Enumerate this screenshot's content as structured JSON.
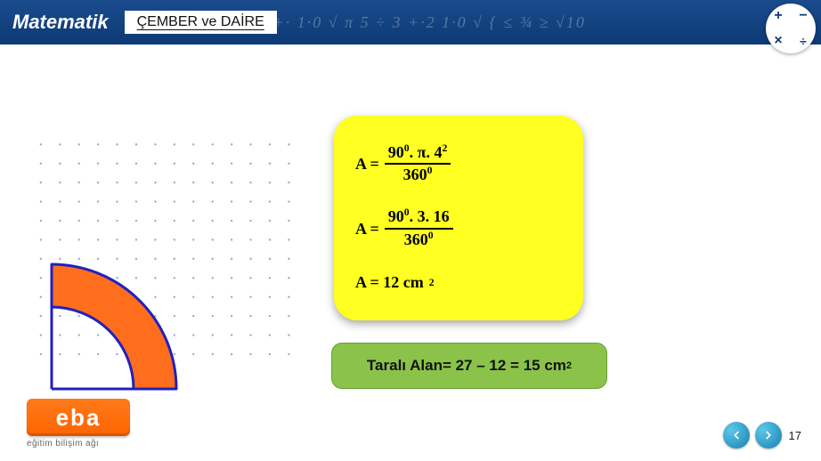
{
  "header": {
    "brand": "Matematik",
    "subtitle": "ÇEMBER ve DAİRE",
    "decor": "π 5 ÷ 3 +·2 1 +· 1·0 √   π 5 ÷ 3 +·2 1·0 √ { ≤ ¾ ≥ √10",
    "badge": [
      "+",
      "−",
      "×",
      "÷"
    ]
  },
  "formulas": {
    "line1_left": "A =",
    "line1_num_a": "90",
    "line1_num_a_sup": "0",
    "line1_num_mid": ". π. 4",
    "line1_num_b_sup": "2",
    "line1_den": "360",
    "line1_den_sup": "0",
    "line2_left": "A =",
    "line2_num_a": "90",
    "line2_num_a_sup": "0",
    "line2_num_mid": ". 3. 16",
    "line2_den": "360",
    "line2_den_sup": "0",
    "line3_left": "A =  12 cm",
    "line3_sup": "2"
  },
  "result": {
    "text": "Taralı Alan= 27 – 12 = 15 cm",
    "sup": "2"
  },
  "diagram": {
    "outer_radius": 140,
    "inner_radius": 92,
    "fill": "#ff6e1c",
    "stroke": "#2020c0",
    "stroke_width": 3,
    "bg": "#ffffff"
  },
  "dots": {
    "rows": 12,
    "cols": 14,
    "gap": 22,
    "color": "#9aa5c9",
    "r": 1.2
  },
  "logo": {
    "text": "eba",
    "sub": "eğitim bilişim ağı"
  },
  "nav": {
    "page": "17"
  }
}
